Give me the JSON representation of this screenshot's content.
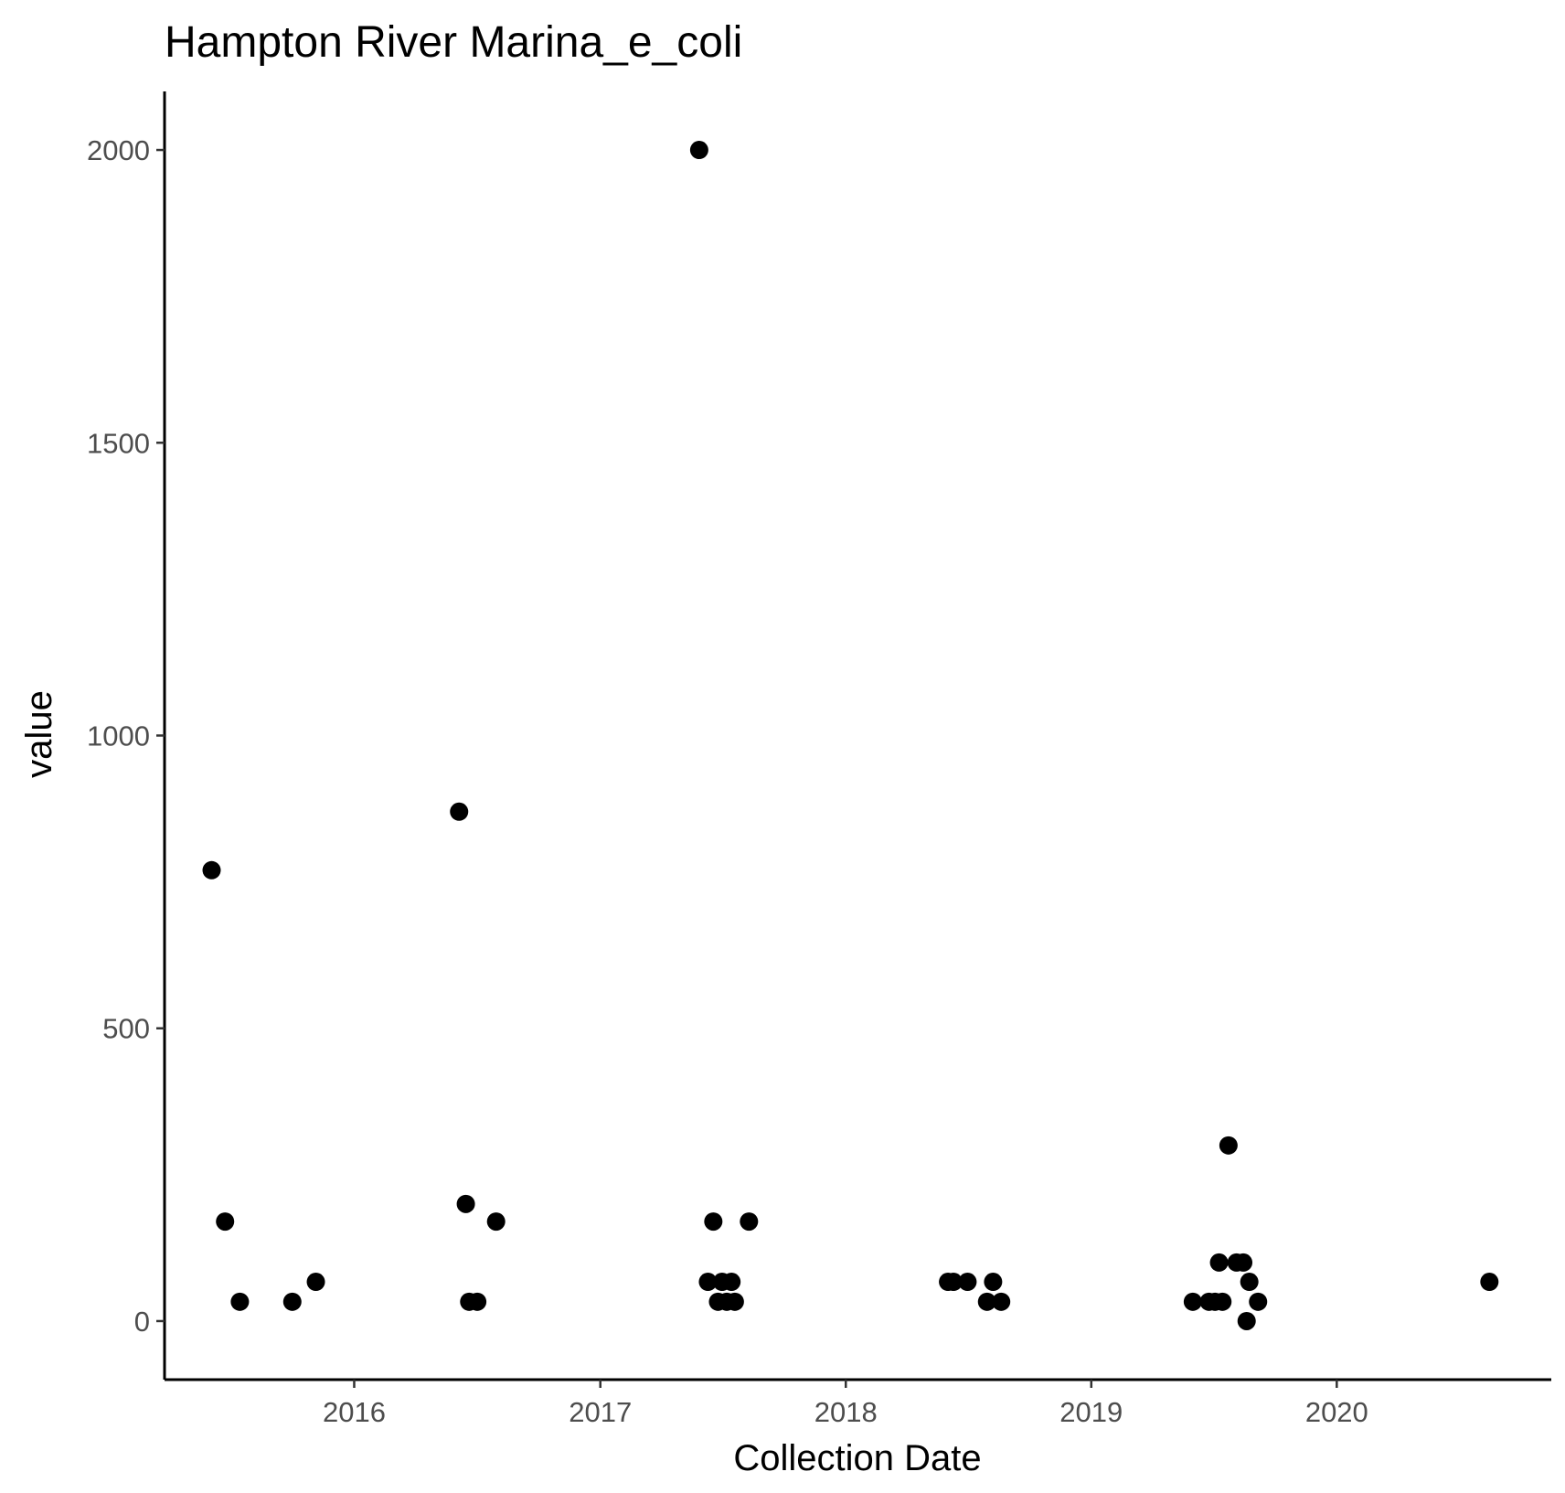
{
  "chart_data": {
    "type": "scatter",
    "title": "Hampton River Marina_e_coli",
    "xlabel": "Collection Date",
    "ylabel": "value",
    "x_type": "date",
    "xlim": [
      "2015-03-25",
      "2020-11-15"
    ],
    "ylim": [
      -100,
      2100
    ],
    "x_ticks": [
      {
        "label": "2016",
        "value": "2016-01-01"
      },
      {
        "label": "2017",
        "value": "2017-01-01"
      },
      {
        "label": "2018",
        "value": "2018-01-01"
      },
      {
        "label": "2019",
        "value": "2019-01-01"
      },
      {
        "label": "2020",
        "value": "2020-01-01"
      }
    ],
    "y_ticks": [
      {
        "label": "0",
        "value": 0
      },
      {
        "label": "500",
        "value": 500
      },
      {
        "label": "1000",
        "value": 1000
      },
      {
        "label": "1500",
        "value": 1500
      },
      {
        "label": "2000",
        "value": 2000
      }
    ],
    "grid": false,
    "legend": "none",
    "point_color": "#000000",
    "points": [
      {
        "x": "2015-06-03",
        "y": 770
      },
      {
        "x": "2015-06-23",
        "y": 170
      },
      {
        "x": "2015-07-15",
        "y": 33
      },
      {
        "x": "2015-10-01",
        "y": 33
      },
      {
        "x": "2015-11-05",
        "y": 67
      },
      {
        "x": "2016-06-05",
        "y": 870
      },
      {
        "x": "2016-06-15",
        "y": 200
      },
      {
        "x": "2016-06-20",
        "y": 33
      },
      {
        "x": "2016-07-02",
        "y": 33
      },
      {
        "x": "2016-07-30",
        "y": 170
      },
      {
        "x": "2017-05-28",
        "y": 2000
      },
      {
        "x": "2017-06-10",
        "y": 67
      },
      {
        "x": "2017-06-18",
        "y": 170
      },
      {
        "x": "2017-06-25",
        "y": 33
      },
      {
        "x": "2017-07-01",
        "y": 67
      },
      {
        "x": "2017-07-08",
        "y": 33
      },
      {
        "x": "2017-07-15",
        "y": 67
      },
      {
        "x": "2017-07-20",
        "y": 33
      },
      {
        "x": "2017-08-10",
        "y": 170
      },
      {
        "x": "2018-06-02",
        "y": 67
      },
      {
        "x": "2018-06-10",
        "y": 67
      },
      {
        "x": "2018-07-01",
        "y": 67
      },
      {
        "x": "2018-07-30",
        "y": 33
      },
      {
        "x": "2018-08-08",
        "y": 67
      },
      {
        "x": "2018-08-20",
        "y": 33
      },
      {
        "x": "2019-06-01",
        "y": 33
      },
      {
        "x": "2019-06-25",
        "y": 33
      },
      {
        "x": "2019-07-04",
        "y": 33
      },
      {
        "x": "2019-07-10",
        "y": 100
      },
      {
        "x": "2019-07-15",
        "y": 33
      },
      {
        "x": "2019-07-24",
        "y": 300
      },
      {
        "x": "2019-08-05",
        "y": 100
      },
      {
        "x": "2019-08-15",
        "y": 100
      },
      {
        "x": "2019-08-20",
        "y": 0
      },
      {
        "x": "2019-08-24",
        "y": 67
      },
      {
        "x": "2019-09-06",
        "y": 33
      },
      {
        "x": "2020-08-15",
        "y": 67
      }
    ]
  }
}
